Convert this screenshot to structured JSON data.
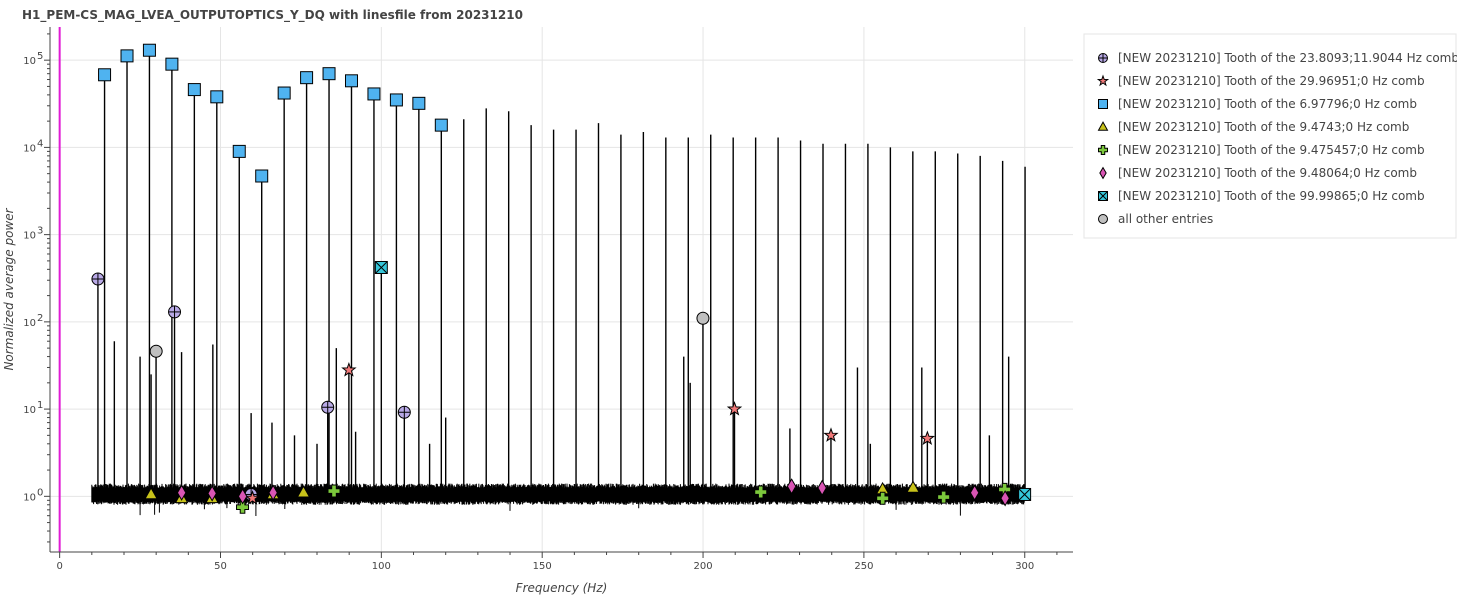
{
  "chart_data": {
    "type": "line",
    "title": "H1_PEM-CS_MAG_LVEA_OUTPUTOPTICS_Y_DQ with linesfile from 20231210",
    "xlabel": "Frequency (Hz)",
    "ylabel": "Normalized average power",
    "xlim": [
      -3,
      315
    ],
    "ylim": [
      0.23,
      240000
    ],
    "yscale": "log",
    "grid": true,
    "legend_position": "right",
    "x_ticks": [
      0,
      50,
      100,
      150,
      200,
      250,
      300
    ],
    "y_ticks": [
      {
        "value": 1,
        "base": "10",
        "exp": "0"
      },
      {
        "value": 10,
        "base": "10",
        "exp": "1"
      },
      {
        "value": 100,
        "base": "10",
        "exp": "2"
      },
      {
        "value": 1000,
        "base": "10",
        "exp": "3"
      },
      {
        "value": 10000,
        "base": "10",
        "exp": "4"
      },
      {
        "value": 100000,
        "base": "10",
        "exp": "5"
      }
    ],
    "vertical_marker": {
      "x": 0,
      "color": "#e01bd4"
    },
    "spectrum": {
      "x_range": [
        10,
        300
      ],
      "baseline": 1.0,
      "noise_band": [
        0.8,
        1.4
      ],
      "color": "#000000",
      "peaks": [
        [
          11.9,
          310
        ],
        [
          13.96,
          68000
        ],
        [
          20.94,
          112000
        ],
        [
          27.91,
          130000
        ],
        [
          34.89,
          90000
        ],
        [
          41.87,
          46000
        ],
        [
          48.85,
          38000
        ],
        [
          55.83,
          9000
        ],
        [
          62.81,
          4700
        ],
        [
          69.79,
          42000
        ],
        [
          76.76,
          63000
        ],
        [
          83.74,
          70000
        ],
        [
          90.72,
          58000
        ],
        [
          97.7,
          41000
        ],
        [
          104.68,
          35000
        ],
        [
          111.66,
          32000
        ],
        [
          118.64,
          18000
        ],
        [
          125.62,
          21000
        ],
        [
          132.6,
          28000
        ],
        [
          139.58,
          26000
        ],
        [
          146.56,
          18000
        ],
        [
          153.54,
          16000
        ],
        [
          160.52,
          16000
        ],
        [
          167.5,
          19000
        ],
        [
          174.47,
          14000
        ],
        [
          181.45,
          15000
        ],
        [
          188.43,
          13000
        ],
        [
          195.41,
          13000
        ],
        [
          202.39,
          14000
        ],
        [
          209.37,
          13000
        ],
        [
          216.35,
          13000
        ],
        [
          223.33,
          13000
        ],
        [
          230.31,
          12000
        ],
        [
          237.29,
          11000
        ],
        [
          244.27,
          11000
        ],
        [
          251.25,
          11000
        ],
        [
          258.23,
          10000
        ],
        [
          265.21,
          9000
        ],
        [
          272.19,
          9000
        ],
        [
          279.17,
          8500
        ],
        [
          286.15,
          8000
        ],
        [
          293.13,
          7000
        ],
        [
          300.1,
          6000
        ],
        [
          35.71,
          130
        ],
        [
          47.62,
          55
        ],
        [
          59.52,
          9
        ],
        [
          83.33,
          10.5
        ],
        [
          107.14,
          9.2
        ],
        [
          29.97,
          46
        ],
        [
          89.91,
          28
        ],
        [
          209.78,
          10
        ],
        [
          239.76,
          5
        ],
        [
          269.73,
          4.6
        ],
        [
          99.99,
          420
        ],
        [
          199.97,
          110
        ],
        [
          28.42,
          25
        ],
        [
          37.9,
          45
        ],
        [
          25.0,
          40
        ],
        [
          17.0,
          60
        ],
        [
          66.0,
          7
        ],
        [
          73.0,
          5
        ],
        [
          80.0,
          4
        ],
        [
          86.0,
          50
        ],
        [
          92.0,
          5.5
        ],
        [
          115.0,
          4
        ],
        [
          120.0,
          8
        ],
        [
          194.0,
          40
        ],
        [
          196.0,
          20
        ],
        [
          227.0,
          6
        ],
        [
          248.0,
          30
        ],
        [
          252.0,
          4
        ],
        [
          268.0,
          30
        ],
        [
          289.0,
          5
        ],
        [
          295.0,
          40
        ]
      ]
    },
    "series": [
      {
        "name": "[NEW 20231210] Tooth of the 23.8093;11.9044 Hz comb",
        "marker": "circle-cross",
        "color": "#b8a9e6",
        "points": [
          [
            11.9,
            310
          ],
          [
            35.71,
            130
          ],
          [
            59.52,
            1.05
          ],
          [
            83.33,
            10.5
          ],
          [
            107.14,
            9.2
          ]
        ]
      },
      {
        "name": "[NEW 20231210] Tooth of the 29.96951;0 Hz comb",
        "marker": "star",
        "color": "#f07878",
        "points": [
          [
            59.94,
            0.95
          ],
          [
            89.91,
            28
          ],
          [
            209.78,
            10
          ],
          [
            239.76,
            5
          ],
          [
            269.73,
            4.6
          ]
        ]
      },
      {
        "name": "[NEW 20231210] Tooth of the 6.97796;0 Hz comb",
        "marker": "square",
        "color": "#4fb3f0",
        "points": [
          [
            13.96,
            68000
          ],
          [
            20.94,
            112000
          ],
          [
            27.91,
            130000
          ],
          [
            34.89,
            90000
          ],
          [
            41.87,
            46000
          ],
          [
            48.85,
            38000
          ],
          [
            55.83,
            9000
          ],
          [
            62.81,
            4700
          ],
          [
            69.79,
            42000
          ],
          [
            76.76,
            63000
          ],
          [
            83.74,
            70000
          ],
          [
            90.72,
            58000
          ],
          [
            97.7,
            41000
          ],
          [
            104.68,
            35000
          ],
          [
            111.66,
            32000
          ],
          [
            118.64,
            18000
          ]
        ]
      },
      {
        "name": "[NEW 20231210] Tooth of the 9.4743;0 Hz comb",
        "marker": "triangle",
        "color": "#c8c21a",
        "points": [
          [
            28.42,
            1.05
          ],
          [
            37.9,
            0.95
          ],
          [
            47.37,
            0.95
          ],
          [
            66.32,
            1.05
          ],
          [
            75.79,
            1.1
          ],
          [
            255.81,
            1.2
          ],
          [
            265.28,
            1.25
          ]
        ]
      },
      {
        "name": "[NEW 20231210] Tooth of the 9.475457;0 Hz comb",
        "marker": "plus",
        "color": "#7cc83c",
        "points": [
          [
            56.85,
            0.75
          ],
          [
            85.28,
            1.15
          ],
          [
            217.93,
            1.12
          ],
          [
            255.84,
            0.95
          ],
          [
            274.79,
            0.98
          ],
          [
            293.74,
            1.2
          ]
        ]
      },
      {
        "name": "[NEW 20231210] Tooth of the 9.48064;0 Hz comb",
        "marker": "diamond",
        "color": "#d955b4",
        "points": [
          [
            37.92,
            1.1
          ],
          [
            47.4,
            1.08
          ],
          [
            56.88,
            1.0
          ],
          [
            66.36,
            1.1
          ],
          [
            227.53,
            1.3
          ],
          [
            237.02,
            1.25
          ],
          [
            284.42,
            1.1
          ],
          [
            293.9,
            0.95
          ]
        ]
      },
      {
        "name": "[NEW 20231210] Tooth of the 99.99865;0 Hz comb",
        "marker": "square-x",
        "color": "#36c6d9",
        "points": [
          [
            99.99,
            420
          ],
          [
            299.96,
            1.05
          ]
        ]
      },
      {
        "name": "all other entries",
        "marker": "circle",
        "color": "#c0c0c0",
        "points": [
          [
            30.0,
            46
          ],
          [
            199.97,
            110
          ]
        ]
      }
    ]
  }
}
